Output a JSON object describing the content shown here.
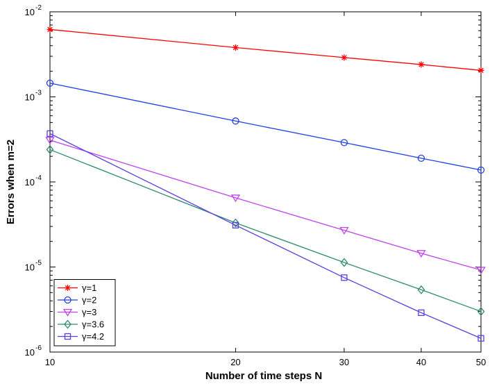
{
  "chart_data": {
    "type": "line",
    "title": "",
    "xlabel": "Number of time steps N",
    "ylabel": "Errors when m=2",
    "x_scale": "log",
    "y_scale": "log",
    "xlim": [
      10,
      50
    ],
    "ylim": [
      1e-06,
      0.01
    ],
    "x_ticks": [
      10,
      20,
      30,
      40,
      50
    ],
    "x_tick_labels": [
      "10",
      "20",
      "30",
      "40",
      "50"
    ],
    "y_ticks": [
      1e-06,
      1e-05,
      0.0001,
      0.001,
      0.01
    ],
    "y_tick_labels": [
      {
        "base": "10",
        "exp": "-6"
      },
      {
        "base": "10",
        "exp": "-5"
      },
      {
        "base": "10",
        "exp": "-4"
      },
      {
        "base": "10",
        "exp": "-3"
      },
      {
        "base": "10",
        "exp": "-2"
      }
    ],
    "grid": false,
    "legend_position": "bottom-left",
    "x": [
      10,
      20,
      30,
      40,
      50
    ],
    "series": [
      {
        "name": "γ=1",
        "color": "#ff0000",
        "marker": "asterisk",
        "values": [
          0.0062,
          0.0038,
          0.0029,
          0.0024,
          0.00205
        ]
      },
      {
        "name": "γ=2",
        "color": "#1f3fe6",
        "marker": "circle",
        "values": [
          0.00145,
          0.00052,
          0.00029,
          0.00019,
          0.000138
        ]
      },
      {
        "name": "γ=3",
        "color": "#bf40ee",
        "marker": "triangle-down",
        "values": [
          0.00031,
          6.5e-05,
          2.7e-05,
          1.45e-05,
          9.2e-06
        ]
      },
      {
        "name": "γ=3.6",
        "color": "#2e8b6e",
        "marker": "diamond",
        "values": [
          0.00024,
          3.3e-05,
          1.13e-05,
          5.4e-06,
          3e-06
        ]
      },
      {
        "name": "γ=4.2",
        "color": "#5a3fe0",
        "marker": "square",
        "values": [
          0.00037,
          3.1e-05,
          7.5e-06,
          2.9e-06,
          1.45e-06
        ]
      }
    ]
  }
}
